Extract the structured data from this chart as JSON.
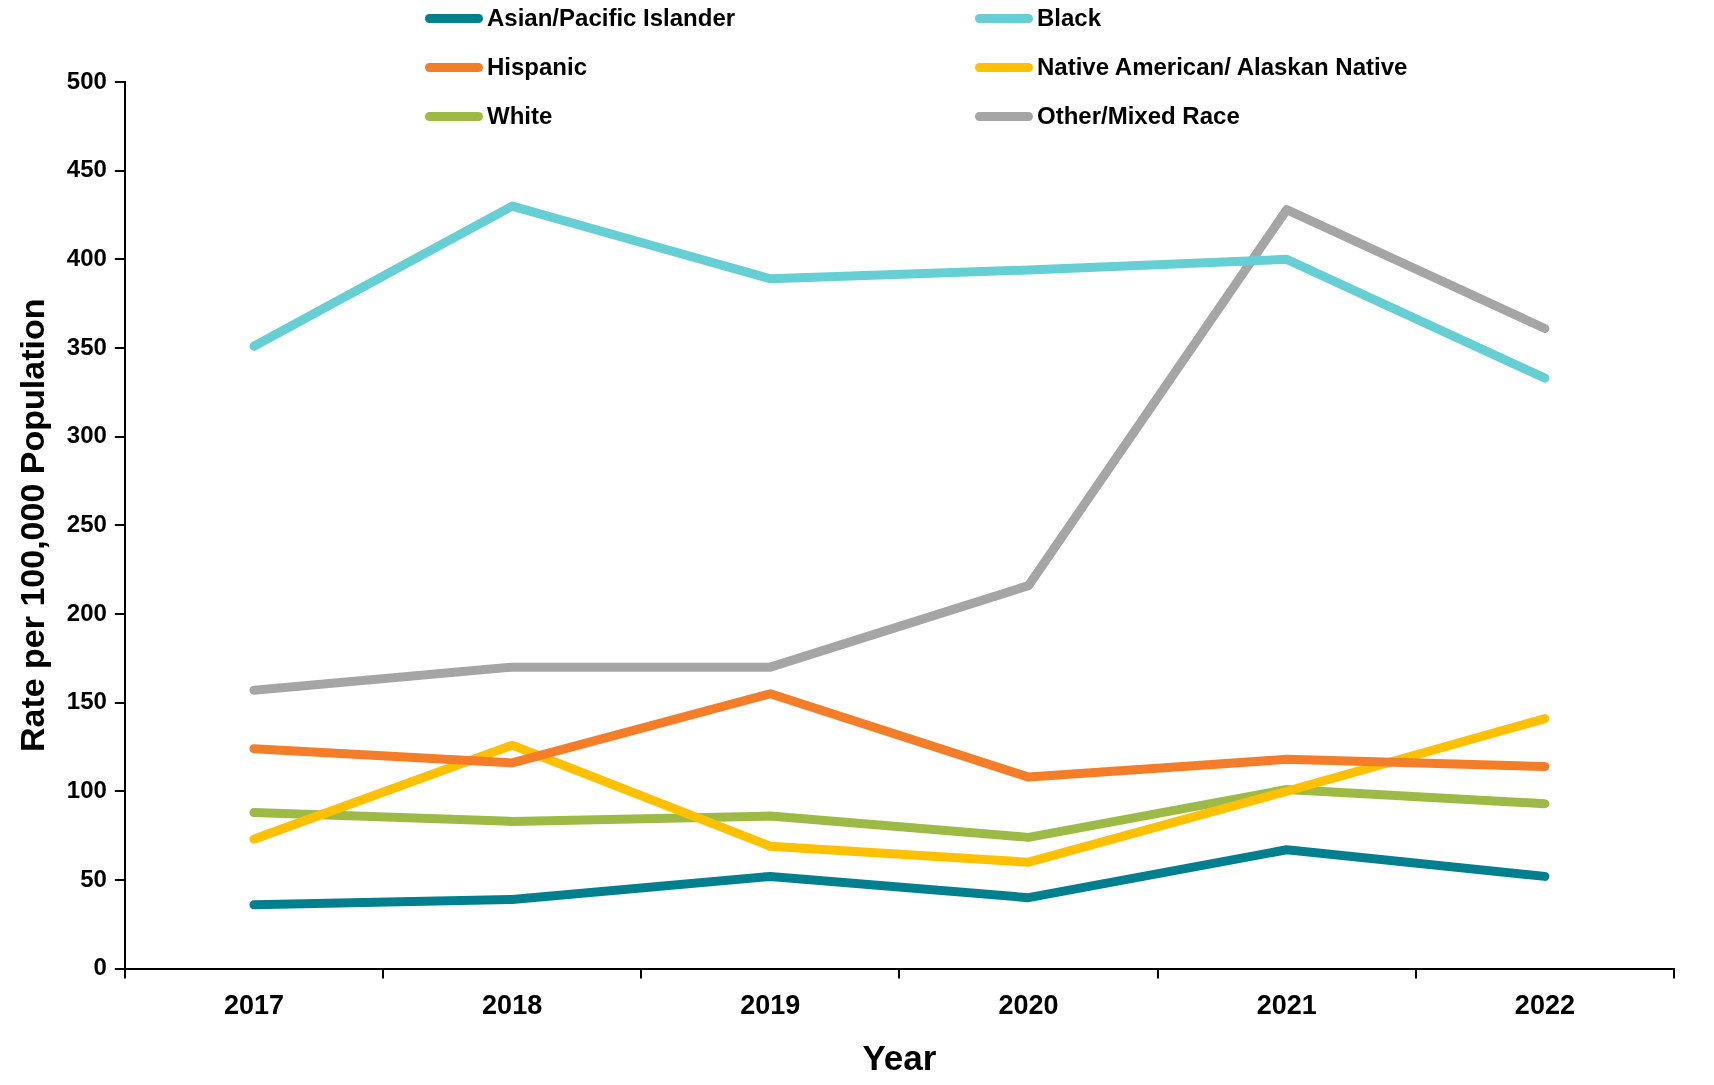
{
  "chart_data": {
    "type": "line",
    "xlabel": "Year",
    "ylabel": "Rate per 100,000 Population",
    "categories": [
      "2017",
      "2018",
      "2019",
      "2020",
      "2021",
      "2022"
    ],
    "series": [
      {
        "name": "Asian/Pacific Islander",
        "color": "#00808f",
        "values": [
          36,
          39,
          52,
          40,
          67,
          52
        ]
      },
      {
        "name": "Black",
        "color": "#66cfd4",
        "values": [
          351,
          430,
          389,
          394,
          400,
          333
        ]
      },
      {
        "name": "Hispanic",
        "color": "#f47d2a",
        "values": [
          124,
          116,
          155,
          108,
          118,
          114
        ]
      },
      {
        "name": "Native American/ Alaskan Native",
        "color": "#ffc000",
        "values": [
          73,
          126,
          69,
          60,
          100,
          141
        ]
      },
      {
        "name": "White",
        "color": "#9cba45",
        "values": [
          88,
          83,
          86,
          74,
          101,
          93
        ]
      },
      {
        "name": "Other/Mixed Race",
        "color": "#a5a5a5",
        "values": [
          157,
          170,
          170,
          216,
          428,
          361
        ]
      }
    ],
    "ylim": [
      0,
      500
    ],
    "yticks": [
      0,
      50,
      100,
      150,
      200,
      250,
      300,
      350,
      400,
      450,
      500
    ],
    "grid": false,
    "legend": "top",
    "marker": "none",
    "line_style": "solid"
  }
}
